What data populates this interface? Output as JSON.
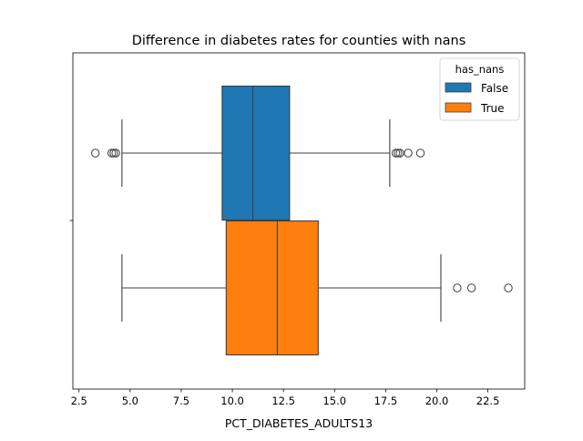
{
  "chart_data": {
    "type": "boxplot",
    "orientation": "horizontal",
    "title": "Difference in diabetes rates for counties with nans",
    "xlabel": "PCT_DIABETES_ADULTS13",
    "ylabel": "",
    "xlim": [
      2.2,
      24.3
    ],
    "x_ticks": [
      2.5,
      5.0,
      7.5,
      10.0,
      12.5,
      15.0,
      17.5,
      20.0,
      22.5
    ],
    "x_tick_labels": [
      "2.5",
      "5.0",
      "7.5",
      "10.0",
      "12.5",
      "15.0",
      "17.5",
      "20.0",
      "22.5"
    ],
    "grid": false,
    "legend": {
      "title": "has_nans",
      "placement": "top-right",
      "entries": [
        "False",
        "True"
      ]
    },
    "series": [
      {
        "name": "False",
        "color": "#1f77b4",
        "whisker_low": 4.6,
        "q1": 9.5,
        "median": 11.0,
        "q3": 12.8,
        "whisker_high": 17.7,
        "outliers": [
          3.3,
          4.1,
          4.2,
          4.3,
          18.0,
          18.1,
          18.2,
          18.6,
          19.2
        ]
      },
      {
        "name": "True",
        "color": "#ff7f0e",
        "whisker_low": 4.6,
        "q1": 9.7,
        "median": 12.2,
        "q3": 14.2,
        "whisker_high": 20.2,
        "outliers": [
          21.0,
          21.7,
          23.5
        ]
      }
    ]
  }
}
